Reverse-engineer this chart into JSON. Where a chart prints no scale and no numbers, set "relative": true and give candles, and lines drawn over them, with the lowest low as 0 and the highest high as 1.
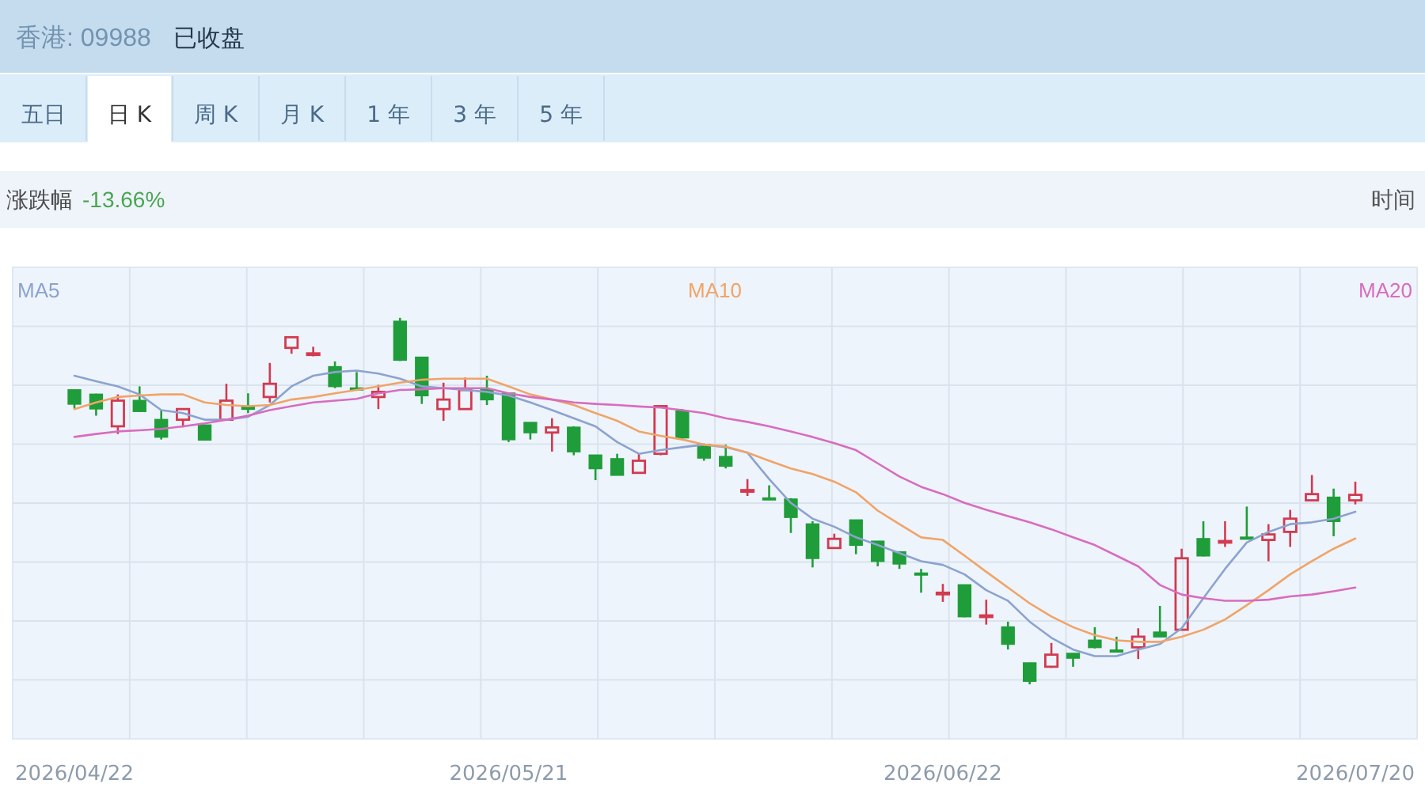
{
  "chart_data": {
    "type": "candlestick",
    "title": "香港: 09988",
    "subtitle": "已收盘",
    "annotations": [
      "五日",
      "日 K",
      "周 K",
      "月 K",
      "1 年",
      "3 年",
      "5 年",
      "涨跌幅",
      "-13.66%",
      "时间"
    ],
    "categories": [
      "2026/04/22",
      null,
      null,
      null,
      null,
      null,
      null,
      null,
      null,
      null,
      null,
      null,
      null,
      null,
      null,
      null,
      null,
      null,
      null,
      null,
      "2026/05/21",
      null,
      null,
      null,
      null,
      null,
      null,
      null,
      null,
      null,
      null,
      null,
      null,
      null,
      null,
      null,
      null,
      null,
      null,
      null,
      "2026/06/22",
      null,
      null,
      null,
      null,
      null,
      null,
      null,
      null,
      null,
      null,
      null,
      null,
      null,
      null,
      null,
      null,
      null,
      null,
      "2026/07/20"
    ],
    "relative": true,
    "ohlc": [
      [
        0.803,
        0.804,
        0.752,
        0.765
      ],
      [
        0.791,
        0.793,
        0.733,
        0.752
      ],
      [
        0.704,
        0.791,
        0.683,
        0.774
      ],
      [
        0.774,
        0.813,
        0.743,
        0.745
      ],
      [
        0.722,
        0.748,
        0.668,
        0.675
      ],
      [
        0.722,
        0.752,
        0.701,
        0.751
      ],
      [
        0.707,
        0.709,
        0.665,
        0.667
      ],
      [
        0.722,
        0.82,
        0.722,
        0.774
      ],
      [
        0.759,
        0.794,
        0.74,
        0.751
      ],
      [
        0.784,
        0.877,
        0.769,
        0.82
      ],
      [
        0.918,
        0.947,
        0.902,
        0.947
      ],
      [
        0.901,
        0.921,
        0.895,
        0.903
      ],
      [
        0.866,
        0.881,
        0.808,
        0.813
      ],
      [
        0.808,
        0.852,
        0.803,
        0.804
      ],
      [
        0.784,
        0.817,
        0.751,
        0.798
      ],
      [
        0.99,
        1.0,
        0.882,
        0.885
      ],
      [
        0.892,
        0.892,
        0.765,
        0.788
      ],
      [
        0.751,
        0.823,
        0.719,
        0.777
      ],
      [
        0.751,
        0.837,
        0.751,
        0.803
      ],
      [
        0.803,
        0.842,
        0.762,
        0.777
      ],
      [
        0.794,
        0.795,
        0.661,
        0.668
      ],
      [
        0.714,
        0.714,
        0.668,
        0.687
      ],
      [
        0.687,
        0.726,
        0.635,
        0.701
      ],
      [
        0.701,
        0.704,
        0.625,
        0.635
      ],
      [
        0.625,
        0.626,
        0.557,
        0.589
      ],
      [
        0.615,
        0.629,
        0.57,
        0.571
      ],
      [
        0.577,
        0.629,
        0.577,
        0.61
      ],
      [
        0.629,
        0.762,
        0.625,
        0.759
      ],
      [
        0.745,
        0.751,
        0.67,
        0.673
      ],
      [
        0.654,
        0.657,
        0.61,
        0.618
      ],
      [
        0.621,
        0.654,
        0.589,
        0.596
      ],
      [
        0.528,
        0.56,
        0.514,
        0.53
      ],
      [
        0.508,
        0.543,
        0.505,
        0.506
      ],
      [
        0.505,
        0.508,
        0.413,
        0.456
      ],
      [
        0.437,
        0.445,
        0.319,
        0.344
      ],
      [
        0.372,
        0.411,
        0.372,
        0.397
      ],
      [
        0.448,
        0.448,
        0.355,
        0.38
      ],
      [
        0.39,
        0.39,
        0.322,
        0.336
      ],
      [
        0.361,
        0.361,
        0.315,
        0.329
      ],
      [
        0.303,
        0.315,
        0.25,
        0.3
      ],
      [
        0.248,
        0.274,
        0.225,
        0.25
      ],
      [
        0.271,
        0.271,
        0.183,
        0.185
      ],
      [
        0.186,
        0.231,
        0.163,
        0.188
      ],
      [
        0.156,
        0.171,
        0.095,
        0.11
      ],
      [
        0.058,
        0.059,
        0.0,
        0.009
      ],
      [
        0.048,
        0.113,
        0.045,
        0.081
      ],
      [
        0.084,
        0.085,
        0.048,
        0.072
      ],
      [
        0.12,
        0.156,
        0.098,
        0.101
      ],
      [
        0.093,
        0.13,
        0.09,
        0.091
      ],
      [
        0.101,
        0.153,
        0.069,
        0.13
      ],
      [
        0.142,
        0.214,
        0.129,
        0.13
      ],
      [
        0.149,
        0.37,
        0.149,
        0.344
      ],
      [
        0.397,
        0.445,
        0.349,
        0.351
      ],
      [
        0.39,
        0.445,
        0.375,
        0.391
      ],
      [
        0.401,
        0.485,
        0.398,
        0.4
      ],
      [
        0.394,
        0.437,
        0.336,
        0.409
      ],
      [
        0.416,
        0.476,
        0.375,
        0.452
      ],
      [
        0.502,
        0.571,
        0.502,
        0.519
      ],
      [
        0.51,
        0.534,
        0.404,
        0.445
      ],
      [
        0.502,
        0.553,
        0.491,
        0.517
      ]
    ],
    "colors": [
      "#1f9d3a",
      "#1f9d3a",
      "#d23a50",
      "#1f9d3a",
      "#1f9d3a",
      "#d23a50",
      "#1f9d3a",
      "#d23a50",
      "#1f9d3a",
      "#d23a50",
      "#d23a50",
      "#d23a50",
      "#1f9d3a",
      "#1f9d3a",
      "#d23a50",
      "#1f9d3a",
      "#1f9d3a",
      "#d23a50",
      "#d23a50",
      "#1f9d3a",
      "#1f9d3a",
      "#1f9d3a",
      "#d23a50",
      "#1f9d3a",
      "#1f9d3a",
      "#1f9d3a",
      "#d23a50",
      "#d23a50",
      "#1f9d3a",
      "#1f9d3a",
      "#1f9d3a",
      "#d23a50",
      "#1f9d3a",
      "#1f9d3a",
      "#1f9d3a",
      "#d23a50",
      "#1f9d3a",
      "#1f9d3a",
      "#1f9d3a",
      "#1f9d3a",
      "#d23a50",
      "#1f9d3a",
      "#d23a50",
      "#1f9d3a",
      "#1f9d3a",
      "#d23a50",
      "#1f9d3a",
      "#1f9d3a",
      "#1f9d3a",
      "#d23a50",
      "#1f9d3a",
      "#d23a50",
      "#1f9d3a",
      "#d23a50",
      "#1f9d3a",
      "#d23a50",
      "#d23a50",
      "#d23a50",
      "#1f9d3a",
      "#d23a50"
    ],
    "series": [
      {
        "name": "MA5",
        "type": "line",
        "color": "#8ca3cf",
        "values": [
          0.842,
          0.827,
          0.813,
          0.791,
          0.748,
          0.74,
          0.722,
          0.722,
          0.73,
          0.762,
          0.813,
          0.842,
          0.852,
          0.856,
          0.848,
          0.834,
          0.813,
          0.808,
          0.803,
          0.798,
          0.788,
          0.769,
          0.748,
          0.726,
          0.704,
          0.661,
          0.629,
          0.639,
          0.647,
          0.654,
          0.647,
          0.632,
          0.56,
          0.495,
          0.452,
          0.43,
          0.401,
          0.38,
          0.358,
          0.336,
          0.326,
          0.3,
          0.257,
          0.228,
          0.171,
          0.127,
          0.095,
          0.077,
          0.077,
          0.095,
          0.11,
          0.153,
          0.235,
          0.315,
          0.387,
          0.416,
          0.437,
          0.442,
          0.452,
          0.471
        ]
      },
      {
        "name": "MA10",
        "type": "line",
        "color": "#f0a468",
        "values": [
          0.751,
          0.769,
          0.784,
          0.788,
          0.791,
          0.791,
          0.769,
          0.762,
          0.759,
          0.762,
          0.777,
          0.784,
          0.794,
          0.803,
          0.813,
          0.823,
          0.831,
          0.834,
          0.834,
          0.834,
          0.813,
          0.791,
          0.777,
          0.762,
          0.74,
          0.719,
          0.69,
          0.678,
          0.668,
          0.654,
          0.649,
          0.632,
          0.61,
          0.589,
          0.574,
          0.553,
          0.524,
          0.474,
          0.437,
          0.401,
          0.394,
          0.351,
          0.307,
          0.264,
          0.221,
          0.185,
          0.156,
          0.134,
          0.12,
          0.116,
          0.116,
          0.13,
          0.149,
          0.177,
          0.216,
          0.257,
          0.3,
          0.336,
          0.37,
          0.398
        ]
      },
      {
        "name": "MA20",
        "type": "line",
        "color": "#d86cbf",
        "values": [
          0.675,
          0.683,
          0.69,
          0.693,
          0.697,
          0.704,
          0.712,
          0.722,
          0.733,
          0.748,
          0.759,
          0.769,
          0.774,
          0.779,
          0.794,
          0.803,
          0.805,
          0.808,
          0.808,
          0.808,
          0.794,
          0.784,
          0.777,
          0.769,
          0.765,
          0.762,
          0.758,
          0.755,
          0.748,
          0.74,
          0.726,
          0.716,
          0.704,
          0.69,
          0.675,
          0.658,
          0.639,
          0.603,
          0.567,
          0.539,
          0.519,
          0.495,
          0.476,
          0.459,
          0.442,
          0.423,
          0.401,
          0.38,
          0.351,
          0.322,
          0.271,
          0.245,
          0.235,
          0.228,
          0.228,
          0.231,
          0.24,
          0.245,
          0.254,
          0.264
        ]
      }
    ],
    "grid": true,
    "legend": "top"
  }
}
